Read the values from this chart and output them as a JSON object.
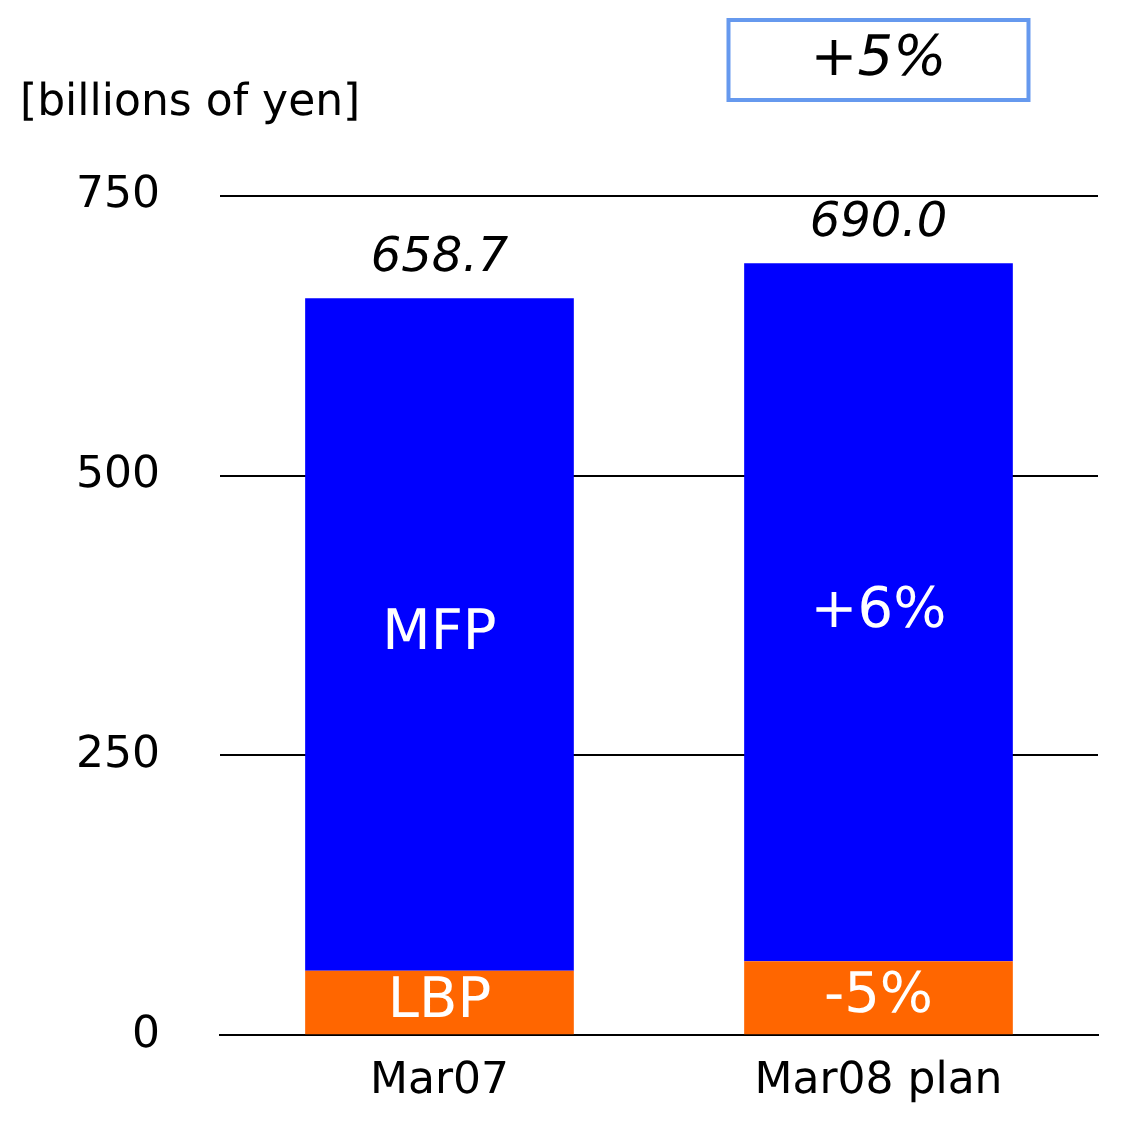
{
  "chart_data": {
    "type": "bar",
    "stacked": true,
    "ylabel": "[billions of yen]",
    "categories": [
      "Mar07",
      "Mar08 plan"
    ],
    "series": [
      {
        "name": "LBP",
        "color": "#ff6600",
        "values": [
          57.7,
          66
        ]
      },
      {
        "name": "MFP",
        "color": "#0000ff",
        "values": [
          601,
          624
        ]
      }
    ],
    "totals": [
      "658.7",
      "690.0"
    ],
    "ylim": [
      0,
      750
    ],
    "yticks": [
      0,
      250,
      500,
      750
    ],
    "grid": "y",
    "legend": false,
    "annotations": [
      "+5%",
      "+6%",
      "-5%"
    ]
  }
}
